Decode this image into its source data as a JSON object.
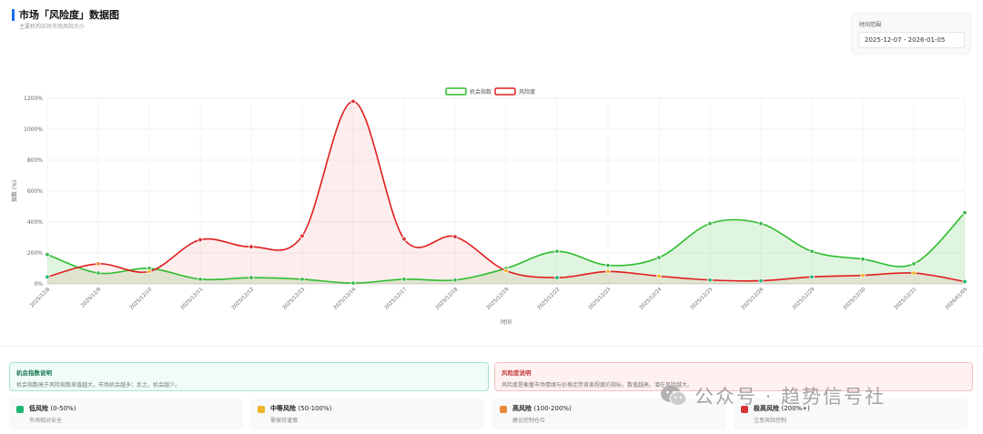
{
  "header": {
    "title": "市场「风险度」数据图",
    "subtitle": "主要机构实时市场风险大小",
    "range_label": "时间范围",
    "range_value": "2025-12-07  -  2026-01-05"
  },
  "colors": {
    "opportunity": "#2ebd2e",
    "risk": "#e01e1e",
    "low": "#22b573",
    "mid": "#f0b429",
    "high": "#e8893a",
    "extreme": "#d93434"
  },
  "chart_data": {
    "type": "area",
    "x": [
      "2025/12/8",
      "2025/12/9",
      "2025/12/10",
      "2025/12/11",
      "2025/12/12",
      "2025/12/15",
      "2025/12/16",
      "2025/12/17",
      "2025/12/18",
      "2025/12/19",
      "2025/12/22",
      "2025/12/23",
      "2025/12/24",
      "2025/12/25",
      "2025/12/26",
      "2025/12/29",
      "2025/12/30",
      "2025/12/31",
      "2026/01/05"
    ],
    "series": [
      {
        "name": "机会指数",
        "values": [
          190,
          70,
          100,
          30,
          40,
          30,
          5,
          30,
          25,
          100,
          210,
          120,
          170,
          390,
          390,
          210,
          160,
          130,
          460
        ]
      },
      {
        "name": "风险度",
        "values": [
          45,
          130,
          80,
          285,
          240,
          310,
          1180,
          290,
          305,
          85,
          40,
          80,
          50,
          25,
          20,
          45,
          55,
          70,
          15
        ]
      }
    ],
    "ylim": [
      0,
      1200
    ],
    "yticks": [
      "0%",
      "200%",
      "400%",
      "600%",
      "800%",
      "1000%",
      "1200%"
    ],
    "xlabel": "时间",
    "ylabel": "指数 (%)",
    "legend_position": "top-center"
  },
  "notes": {
    "opportunity": {
      "title": "机会指数说明",
      "text": "机会指数高于风险指数差值越大，市场机会越多；反之，机会越少。"
    },
    "risk": {
      "title": "风险度说明",
      "text": "风险度是衡量市场情绪与价格走势背离程度的指标，数值越高，潜在风险越大。"
    }
  },
  "levels": [
    {
      "name": "低风险",
      "range": "(0-50%)",
      "desc": "市场相对安全"
    },
    {
      "name": "中等风险",
      "range": "(50-100%)",
      "desc": "需保持谨慎"
    },
    {
      "name": "高风险",
      "range": "(100-200%)",
      "desc": "建议控制仓位"
    },
    {
      "name": "极高风险",
      "range": "(200%+)",
      "desc": "注意风险控制"
    }
  ],
  "watermark": {
    "text": "公众号 · 趋势信号社"
  }
}
